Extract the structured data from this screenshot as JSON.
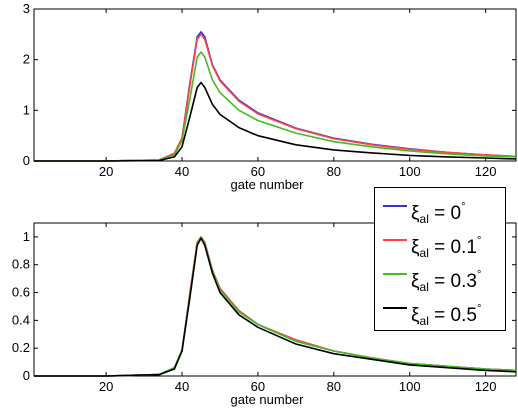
{
  "chart_data": [
    {
      "type": "line",
      "title": "",
      "xlabel": "gate number",
      "ylabel": "",
      "xlim": [
        1,
        128
      ],
      "ylim": [
        0,
        3
      ],
      "xticks": [
        20,
        40,
        60,
        80,
        100,
        120
      ],
      "yticks": [
        0,
        1,
        2,
        3
      ],
      "grid": false,
      "series": [
        {
          "name": "ξal = 0°",
          "color": "#3333cc",
          "x": [
            1,
            20,
            34,
            38,
            40,
            42,
            44,
            45,
            46,
            48,
            50,
            55,
            60,
            70,
            80,
            90,
            100,
            110,
            120,
            128
          ],
          "y": [
            0,
            0,
            0.02,
            0.15,
            0.45,
            1.5,
            2.45,
            2.55,
            2.45,
            1.9,
            1.6,
            1.2,
            0.95,
            0.65,
            0.45,
            0.33,
            0.24,
            0.17,
            0.12,
            0.09
          ]
        },
        {
          "name": "ξal = 0.1°",
          "color": "#ff4444",
          "x": [
            1,
            20,
            34,
            38,
            40,
            42,
            44,
            45,
            46,
            48,
            50,
            55,
            60,
            70,
            80,
            90,
            100,
            110,
            120,
            128
          ],
          "y": [
            0,
            0,
            0.02,
            0.15,
            0.45,
            1.45,
            2.4,
            2.5,
            2.4,
            1.88,
            1.58,
            1.18,
            0.93,
            0.64,
            0.44,
            0.32,
            0.23,
            0.17,
            0.12,
            0.09
          ]
        },
        {
          "name": "ξal = 0.3°",
          "color": "#44bb22",
          "x": [
            1,
            20,
            34,
            38,
            40,
            42,
            44,
            45,
            46,
            48,
            50,
            55,
            60,
            70,
            80,
            90,
            100,
            110,
            120,
            128
          ],
          "y": [
            0,
            0,
            0.02,
            0.12,
            0.4,
            1.2,
            2.05,
            2.15,
            2.05,
            1.6,
            1.35,
            1.0,
            0.8,
            0.55,
            0.38,
            0.28,
            0.2,
            0.14,
            0.1,
            0.08
          ]
        },
        {
          "name": "ξal = 0.5°",
          "color": "#000000",
          "x": [
            1,
            20,
            34,
            38,
            40,
            42,
            44,
            45,
            46,
            48,
            50,
            55,
            60,
            70,
            80,
            90,
            100,
            110,
            120,
            128
          ],
          "y": [
            0,
            0,
            0.01,
            0.08,
            0.28,
            0.85,
            1.45,
            1.55,
            1.45,
            1.12,
            0.92,
            0.66,
            0.5,
            0.32,
            0.22,
            0.16,
            0.11,
            0.08,
            0.06,
            0.04
          ]
        }
      ]
    },
    {
      "type": "line",
      "title": "",
      "xlabel": "gate number",
      "ylabel": "",
      "xlim": [
        1,
        128
      ],
      "ylim": [
        0,
        1.1
      ],
      "xticks": [
        20,
        40,
        60,
        80,
        100,
        120
      ],
      "yticks": [
        0,
        0.2,
        0.4,
        0.6,
        0.8,
        1
      ],
      "ytick_labels": [
        "0",
        "0.2",
        "0.4",
        "0.6",
        "0.8",
        "1"
      ],
      "grid": false,
      "series": [
        {
          "name": "ξal = 0°",
          "color": "#3333cc",
          "x": [
            1,
            20,
            34,
            38,
            40,
            42,
            44,
            45,
            46,
            48,
            50,
            55,
            60,
            70,
            80,
            90,
            100,
            110,
            120,
            128
          ],
          "y": [
            0,
            0,
            0.01,
            0.06,
            0.18,
            0.58,
            0.96,
            1.0,
            0.96,
            0.76,
            0.63,
            0.47,
            0.37,
            0.25,
            0.18,
            0.13,
            0.09,
            0.07,
            0.05,
            0.04
          ]
        },
        {
          "name": "ξal = 0.1°",
          "color": "#ff4444",
          "x": [
            1,
            20,
            34,
            38,
            40,
            42,
            44,
            45,
            46,
            48,
            50,
            55,
            60,
            70,
            80,
            90,
            100,
            110,
            120,
            128
          ],
          "y": [
            0,
            0,
            0.01,
            0.06,
            0.18,
            0.58,
            0.96,
            1.0,
            0.96,
            0.76,
            0.63,
            0.47,
            0.37,
            0.26,
            0.18,
            0.13,
            0.09,
            0.07,
            0.05,
            0.04
          ]
        },
        {
          "name": "ξal = 0.3°",
          "color": "#44bb22",
          "x": [
            1,
            20,
            34,
            38,
            40,
            42,
            44,
            45,
            46,
            48,
            50,
            55,
            60,
            70,
            80,
            90,
            100,
            110,
            120,
            128
          ],
          "y": [
            0,
            0,
            0.01,
            0.06,
            0.19,
            0.56,
            0.95,
            1.0,
            0.95,
            0.75,
            0.62,
            0.46,
            0.37,
            0.25,
            0.18,
            0.13,
            0.09,
            0.07,
            0.05,
            0.04
          ]
        },
        {
          "name": "ξal = 0.5°",
          "color": "#000000",
          "x": [
            1,
            20,
            34,
            38,
            40,
            42,
            44,
            45,
            46,
            48,
            50,
            55,
            60,
            70,
            80,
            90,
            100,
            110,
            120,
            128
          ],
          "y": [
            0,
            0,
            0.01,
            0.05,
            0.18,
            0.55,
            0.94,
            0.99,
            0.94,
            0.74,
            0.6,
            0.44,
            0.35,
            0.23,
            0.16,
            0.12,
            0.08,
            0.06,
            0.04,
            0.03
          ]
        }
      ]
    }
  ],
  "legend": {
    "items": [
      {
        "symbol": "ξ",
        "sub": "al",
        "value": " = 0",
        "deg": "°",
        "color": "#3333cc"
      },
      {
        "symbol": "ξ",
        "sub": "al",
        "value": " = 0.1",
        "deg": "°",
        "color": "#ff4444"
      },
      {
        "symbol": "ξ",
        "sub": "al",
        "value": " = 0.3",
        "deg": "°",
        "color": "#44bb22"
      },
      {
        "symbol": "ξ",
        "sub": "al",
        "value": " = 0.5",
        "deg": "°",
        "color": "#000000"
      }
    ]
  }
}
